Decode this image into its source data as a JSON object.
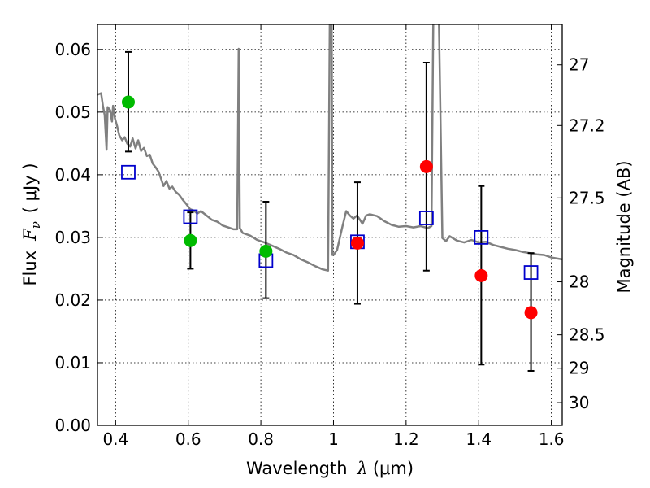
{
  "chart_data": {
    "type": "scatter",
    "xlabel": {
      "prefix": "Wavelength",
      "symbol": "λ",
      "unit": "(μm)"
    },
    "ylabel": {
      "prefix": "Flux",
      "symbol": "F",
      "subscript": "ν",
      "unit": "( μJy )"
    },
    "y2label": "Magnitude (AB)",
    "xlim": [
      0.35,
      1.63
    ],
    "ylim": [
      0.0,
      0.064
    ],
    "grid": true,
    "x_ticks": [
      0.4,
      0.6,
      0.8,
      1.0,
      1.2,
      1.4,
      1.6
    ],
    "x_tick_labels": [
      "0.4",
      "0.6",
      "0.8",
      "1",
      "1.2",
      "1.4",
      "1.6"
    ],
    "y_ticks": [
      0.0,
      0.01,
      0.02,
      0.03,
      0.04,
      0.05,
      0.06
    ],
    "y_tick_labels": [
      "0.00",
      "0.01",
      "0.02",
      "0.03",
      "0.04",
      "0.05",
      "0.06"
    ],
    "y2_ticks": [
      {
        "label": "27",
        "mag": 27.0
      },
      {
        "label": "27.2",
        "mag": 27.2
      },
      {
        "label": "27.5",
        "mag": 27.5
      },
      {
        "label": "28",
        "mag": 28.0
      },
      {
        "label": "28.5",
        "mag": 28.5
      },
      {
        "label": "29",
        "mag": 29.0
      },
      {
        "label": "30",
        "mag": 30.0
      }
    ],
    "colors": {
      "template": "#808080",
      "green": "#00bb00",
      "red": "#ff0000",
      "model": "#0000cc",
      "errorbar": "#000000"
    },
    "series": [
      {
        "marker": "circle",
        "color": "#00bb00",
        "points": [
          {
            "x": 0.435,
            "y": 0.0516,
            "err": [
              0.0437,
              0.0596
            ]
          },
          {
            "x": 0.606,
            "y": 0.0295,
            "err": [
              0.025,
              0.034
            ]
          },
          {
            "x": 0.814,
            "y": 0.0278,
            "err": [
              0.0203,
              0.0357
            ]
          }
        ]
      },
      {
        "marker": "circle",
        "color": "#ff0000",
        "points": [
          {
            "x": 1.066,
            "y": 0.0291,
            "err": [
              0.0194,
              0.0388
            ]
          },
          {
            "x": 1.256,
            "y": 0.0413,
            "err": [
              0.0247,
              0.0579
            ]
          },
          {
            "x": 1.407,
            "y": 0.0239,
            "err": [
              0.0097,
              0.0382
            ]
          },
          {
            "x": 1.544,
            "y": 0.018,
            "err": [
              0.0087,
              0.0275
            ]
          }
        ]
      },
      {
        "marker": "open-square",
        "color": "#0000cc",
        "points": [
          {
            "x": 0.435,
            "y": 0.0404
          },
          {
            "x": 0.606,
            "y": 0.0333
          },
          {
            "x": 0.814,
            "y": 0.0263
          },
          {
            "x": 1.066,
            "y": 0.0293
          },
          {
            "x": 1.256,
            "y": 0.0331
          },
          {
            "x": 1.407,
            "y": 0.03
          },
          {
            "x": 1.544,
            "y": 0.0244
          }
        ]
      },
      {
        "type": "line",
        "color": "#808080",
        "points": [
          [
            0.35,
            0.0528
          ],
          [
            0.36,
            0.053
          ],
          [
            0.365,
            0.051
          ],
          [
            0.37,
            0.0495
          ],
          [
            0.375,
            0.044
          ],
          [
            0.378,
            0.0508
          ],
          [
            0.385,
            0.0503
          ],
          [
            0.39,
            0.0485
          ],
          [
            0.393,
            0.051
          ],
          [
            0.398,
            0.049
          ],
          [
            0.404,
            0.0478
          ],
          [
            0.41,
            0.0463
          ],
          [
            0.418,
            0.0455
          ],
          [
            0.425,
            0.046
          ],
          [
            0.432,
            0.045
          ],
          [
            0.44,
            0.0445
          ],
          [
            0.447,
            0.0458
          ],
          [
            0.455,
            0.0442
          ],
          [
            0.462,
            0.0455
          ],
          [
            0.47,
            0.0438
          ],
          [
            0.478,
            0.0443
          ],
          [
            0.486,
            0.043
          ],
          [
            0.494,
            0.0432
          ],
          [
            0.502,
            0.0418
          ],
          [
            0.51,
            0.0412
          ],
          [
            0.518,
            0.0405
          ],
          [
            0.526,
            0.0392
          ],
          [
            0.532,
            0.0382
          ],
          [
            0.54,
            0.039
          ],
          [
            0.548,
            0.0378
          ],
          [
            0.556,
            0.0381
          ],
          [
            0.565,
            0.0373
          ],
          [
            0.575,
            0.0368
          ],
          [
            0.585,
            0.036
          ],
          [
            0.595,
            0.0353
          ],
          [
            0.605,
            0.0345
          ],
          [
            0.615,
            0.0343
          ],
          [
            0.625,
            0.0338
          ],
          [
            0.635,
            0.0342
          ],
          [
            0.65,
            0.0335
          ],
          [
            0.665,
            0.0328
          ],
          [
            0.68,
            0.0325
          ],
          [
            0.695,
            0.0319
          ],
          [
            0.71,
            0.0316
          ],
          [
            0.725,
            0.0313
          ],
          [
            0.735,
            0.0313
          ],
          [
            0.739,
            0.0601
          ],
          [
            0.742,
            0.0315
          ],
          [
            0.75,
            0.0307
          ],
          [
            0.77,
            0.0303
          ],
          [
            0.79,
            0.0296
          ],
          [
            0.81,
            0.0292
          ],
          [
            0.83,
            0.0287
          ],
          [
            0.85,
            0.0282
          ],
          [
            0.87,
            0.0276
          ],
          [
            0.89,
            0.0272
          ],
          [
            0.91,
            0.0265
          ],
          [
            0.93,
            0.026
          ],
          [
            0.95,
            0.0254
          ],
          [
            0.97,
            0.0249
          ],
          [
            0.985,
            0.0247
          ],
          [
            0.99,
            0.066
          ],
          [
            0.995,
            0.066
          ],
          [
            0.997,
            0.0272
          ],
          [
            1.0,
            0.0272
          ],
          [
            1.01,
            0.028
          ],
          [
            1.025,
            0.0318
          ],
          [
            1.035,
            0.0342
          ],
          [
            1.045,
            0.0335
          ],
          [
            1.055,
            0.033
          ],
          [
            1.065,
            0.0335
          ],
          [
            1.08,
            0.0322
          ],
          [
            1.09,
            0.0335
          ],
          [
            1.1,
            0.0337
          ],
          [
            1.12,
            0.0334
          ],
          [
            1.14,
            0.0326
          ],
          [
            1.16,
            0.032
          ],
          [
            1.18,
            0.0317
          ],
          [
            1.2,
            0.0318
          ],
          [
            1.22,
            0.0316
          ],
          [
            1.24,
            0.0318
          ],
          [
            1.26,
            0.0315
          ],
          [
            1.27,
            0.0318
          ],
          [
            1.275,
            0.066
          ],
          [
            1.29,
            0.066
          ],
          [
            1.3,
            0.0299
          ],
          [
            1.31,
            0.0294
          ],
          [
            1.32,
            0.0302
          ],
          [
            1.34,
            0.0295
          ],
          [
            1.36,
            0.0292
          ],
          [
            1.38,
            0.0296
          ],
          [
            1.4,
            0.0292
          ],
          [
            1.42,
            0.0293
          ],
          [
            1.44,
            0.0288
          ],
          [
            1.46,
            0.0285
          ],
          [
            1.48,
            0.0282
          ],
          [
            1.5,
            0.028
          ],
          [
            1.52,
            0.0277
          ],
          [
            1.54,
            0.0275
          ],
          [
            1.56,
            0.0273
          ],
          [
            1.58,
            0.0272
          ],
          [
            1.6,
            0.0268
          ],
          [
            1.63,
            0.0265
          ]
        ]
      }
    ]
  }
}
